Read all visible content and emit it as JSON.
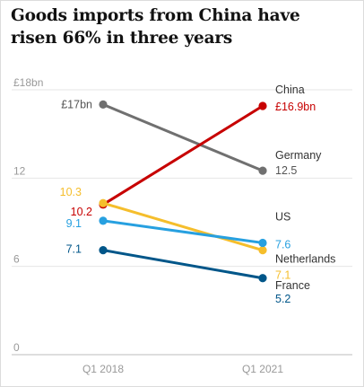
{
  "chart_data": {
    "type": "line",
    "title": "Goods imports from China have risen 66% in three years",
    "categories": [
      "Q1 2018",
      "Q1 2021"
    ],
    "ylim": [
      0,
      18
    ],
    "yticks": [
      {
        "value": 18,
        "label": "£18bn"
      },
      {
        "value": 12,
        "label": "12"
      },
      {
        "value": 6,
        "label": "6"
      },
      {
        "value": 0,
        "label": "0"
      }
    ],
    "grid": true,
    "series": [
      {
        "name": "Germany",
        "color": "#707070",
        "values": [
          17,
          12.5
        ],
        "labels": [
          "£17bn",
          "12.5"
        ]
      },
      {
        "name": "China",
        "color": "#c70000",
        "values": [
          10.2,
          16.9
        ],
        "labels": [
          "10.2",
          "£16.9bn"
        ]
      },
      {
        "name": "Netherlands",
        "color": "#f5be2c",
        "values": [
          10.3,
          7.1
        ],
        "labels": [
          "10.3",
          "7.1"
        ]
      },
      {
        "name": "US",
        "color": "#27a0e0",
        "values": [
          9.1,
          7.6
        ],
        "labels": [
          "9.1",
          "7.6"
        ]
      },
      {
        "name": "France",
        "color": "#005689",
        "values": [
          7.1,
          5.2
        ],
        "labels": [
          "7.1",
          "5.2"
        ]
      }
    ]
  }
}
